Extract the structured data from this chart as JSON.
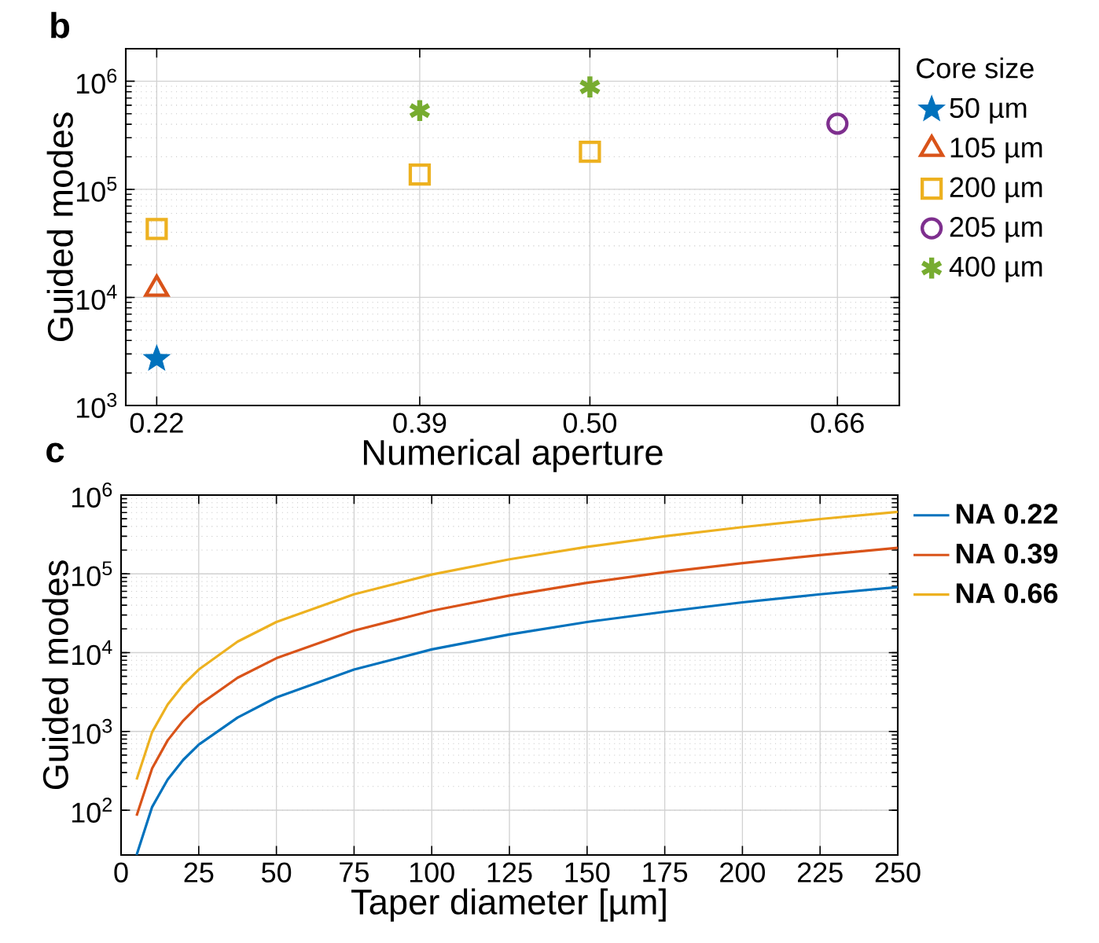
{
  "chart_data": [
    {
      "type": "scatter",
      "xlabel": "Numerical aperture",
      "ylabel": "Guided modes",
      "legend_title": "Core size",
      "legend": "right",
      "grid": true,
      "log": "y",
      "xlim": [
        0.2,
        0.7
      ],
      "xticks": [
        0.22,
        0.39,
        {
          "value": 0.5,
          "label": "0.50"
        },
        0.66
      ],
      "ylim": [
        1000,
        2000000
      ],
      "yticks": [
        {
          "value": 1000,
          "label": "10$^{3}$"
        },
        {
          "value": 10000,
          "label": "10$^{4}$"
        },
        {
          "value": 100000,
          "label": "10$^{5}$"
        },
        {
          "value": 1000000,
          "label": "10$^{6}$"
        }
      ],
      "annotations": [
        "b"
      ],
      "series": [
        {
          "name": "50 µm",
          "color": "#0072bd",
          "marker": "star",
          "x": [
            0.22
          ],
          "values": [
            2700
          ]
        },
        {
          "name": "105 µm",
          "color": "#d95319",
          "marker": "triangle",
          "x": [
            0.22
          ],
          "values": [
            12000
          ]
        },
        {
          "name": "200 µm",
          "color": "#edb120",
          "marker": "square",
          "x": [
            0.22,
            0.39,
            0.5
          ],
          "values": [
            43000,
            137000,
            223000
          ]
        },
        {
          "name": "205 µm",
          "color": "#7e2f8e",
          "marker": "circle",
          "x": [
            0.66
          ],
          "values": [
            405000
          ]
        },
        {
          "name": "400 µm",
          "color": "#77ac30",
          "marker": "cross",
          "x": [
            0.39,
            0.5
          ],
          "values": [
            535000,
            887000
          ]
        }
      ]
    },
    {
      "type": "line",
      "xlabel": "Taper diameter [µm]",
      "ylabel": "Guided modes",
      "legend": "right",
      "grid": true,
      "log": "y",
      "xlim": [
        0,
        250
      ],
      "xticks": [
        0,
        25,
        50,
        75,
        100,
        125,
        150,
        175,
        200,
        225,
        250
      ],
      "ylim": [
        27,
        1000000
      ],
      "yticks": [
        {
          "value": 100,
          "label": "10$^{2}$"
        },
        {
          "value": 1000,
          "label": "10$^{3}$"
        },
        {
          "value": 10000,
          "label": "10$^{4}$"
        },
        {
          "value": 100000,
          "label": "10$^{5}$"
        },
        {
          "value": 1000000,
          "label": "10$^{6}$"
        }
      ],
      "annotations": [
        "c"
      ],
      "x": [
        5,
        10,
        15,
        20,
        25,
        37.5,
        50,
        75,
        100,
        125,
        150,
        175,
        200,
        225,
        250
      ],
      "series": [
        {
          "name": "**NA 0.22**",
          "color": "#0072bd",
          "values": [
            27,
            110,
            245,
            435,
            680,
            1500,
            2700,
            6100,
            11000,
            17000,
            24500,
            33000,
            43500,
            55000,
            68000
          ]
        },
        {
          "name": "**NA 0.39**",
          "color": "#d95319",
          "values": [
            85,
            340,
            770,
            1370,
            2150,
            4800,
            8500,
            19000,
            34000,
            53000,
            77000,
            105000,
            137000,
            173000,
            214000
          ]
        },
        {
          "name": "**NA 0.66**",
          "color": "#edb120",
          "values": [
            245,
            980,
            2200,
            3900,
            6100,
            13800,
            24500,
            55000,
            98000,
            153000,
            220000,
            300000,
            392000,
            496000,
            612000
          ]
        }
      ]
    }
  ]
}
